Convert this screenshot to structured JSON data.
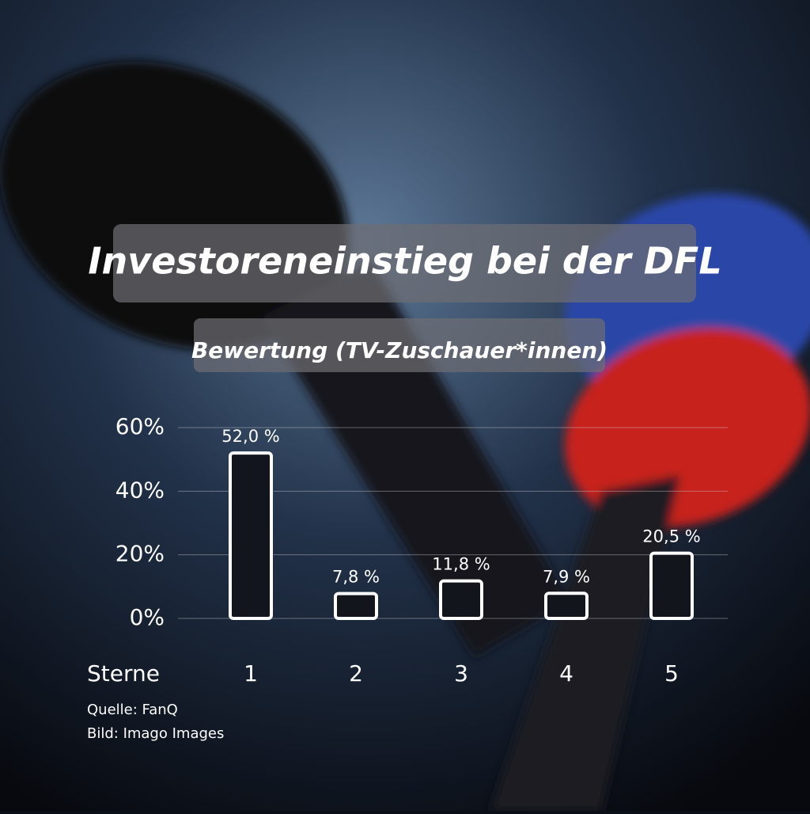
{
  "chart_data": {
    "type": "bar",
    "title": "Investoreneinstieg bei der DFL",
    "subtitle": "Bewertung (TV-Zuschauer*innen)",
    "x_label": "Sterne",
    "categories": [
      "1",
      "2",
      "3",
      "4",
      "5"
    ],
    "values": [
      52.0,
      7.8,
      11.8,
      7.9,
      20.5
    ],
    "value_labels": [
      "52,0 %",
      "7,8 %",
      "11,8 %",
      "7,9 %",
      "20,5 %"
    ],
    "color": "#12151c",
    "ylim": [
      0,
      60
    ],
    "yticks": [
      {
        "value": 0,
        "label": "0%"
      },
      {
        "value": 20,
        "label": "20%"
      },
      {
        "value": 40,
        "label": "40%"
      },
      {
        "value": 60,
        "label": "60%"
      }
    ],
    "grid": true,
    "source": [
      "Quelle: FanQ",
      "Bild: Imago Images"
    ]
  }
}
